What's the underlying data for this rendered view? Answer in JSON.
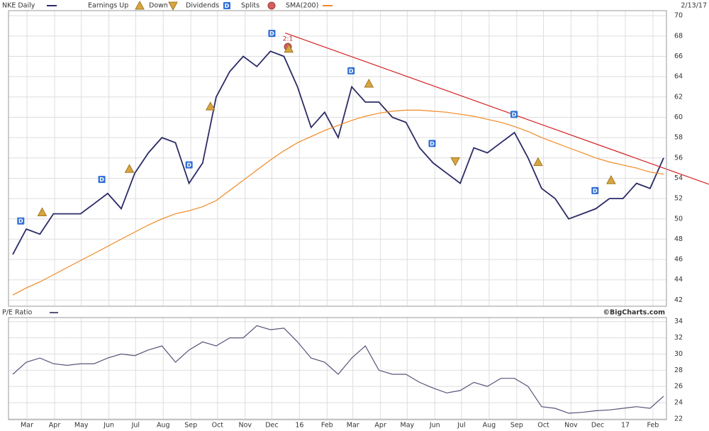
{
  "chart_data": [
    {
      "type": "line",
      "date_label": "2/13/17",
      "xlim": [
        "2015-02-13",
        "2017-02-13"
      ],
      "ylim": [
        41.4,
        70.5
      ],
      "yticks": [
        42,
        44,
        46,
        48,
        50,
        52,
        54,
        56,
        58,
        60,
        62,
        64,
        66,
        68,
        70
      ],
      "grid": true,
      "series": [
        {
          "name": "NKE Daily",
          "color": "#2b2b66",
          "values": [
            46.5,
            49,
            48.5,
            50.5,
            50.5,
            50.5,
            51.5,
            52.5,
            51,
            54.5,
            56.5,
            58,
            57.5,
            53.5,
            55.5,
            62,
            64.5,
            66,
            65,
            66.5,
            66,
            63,
            59,
            60.5,
            58,
            63,
            61.5,
            61.5,
            60,
            59.5,
            57,
            55.5,
            54.5,
            53.5,
            57,
            56.5,
            57.5,
            58.5,
            56,
            53,
            52,
            50,
            50.5,
            51,
            52,
            52,
            53.5,
            53,
            56
          ]
        },
        {
          "name": "SMA(200)",
          "color": "#f08a24",
          "values": [
            42.5,
            43.2,
            43.8,
            44.5,
            45.2,
            45.9,
            46.6,
            47.3,
            48,
            48.7,
            49.4,
            50,
            50.5,
            50.8,
            51.2,
            51.8,
            52.8,
            53.8,
            54.8,
            55.8,
            56.7,
            57.5,
            58.1,
            58.7,
            59.2,
            59.7,
            60.1,
            60.4,
            60.6,
            60.7,
            60.7,
            60.6,
            60.5,
            60.3,
            60.1,
            59.8,
            59.5,
            59.1,
            58.6,
            58,
            57.5,
            57,
            56.5,
            56,
            55.6,
            55.3,
            55,
            54.6,
            54.4
          ]
        }
      ],
      "trendline": {
        "color": "#d42020",
        "points": [
          [
            "2015-12-16",
            68.3
          ],
          [
            "2017-02-13",
            55.0
          ]
        ]
      },
      "event_types": [
        {
          "name": "Earnings Up",
          "shape": "triangle-up",
          "color": "#d9a441"
        },
        {
          "name": "Down",
          "shape": "triangle-down",
          "color": "#d9a441"
        },
        {
          "name": "Dividends",
          "shape": "square",
          "symbol": "D",
          "color": "#2f6fd6"
        },
        {
          "name": "Splits",
          "shape": "circle",
          "color": "#d26060"
        }
      ],
      "events": [
        {
          "kind": "Dividends",
          "x": "2015-02-22"
        },
        {
          "kind": "Earnings Up",
          "x": "2015-03-18"
        },
        {
          "kind": "Dividends",
          "x": "2015-05-24"
        },
        {
          "kind": "Earnings Up",
          "x": "2015-06-24"
        },
        {
          "kind": "Dividends",
          "x": "2015-08-30"
        },
        {
          "kind": "Earnings Up",
          "x": "2015-09-23"
        },
        {
          "kind": "Dividends",
          "x": "2015-12-01"
        },
        {
          "kind": "Splits",
          "x": "2015-12-19",
          "label": "2:1"
        },
        {
          "kind": "Earnings Up",
          "x": "2015-12-20"
        },
        {
          "kind": "Dividends",
          "x": "2016-02-28"
        },
        {
          "kind": "Earnings Up",
          "x": "2016-03-19"
        },
        {
          "kind": "Dividends",
          "x": "2016-05-29"
        },
        {
          "kind": "Down",
          "x": "2016-06-24"
        },
        {
          "kind": "Dividends",
          "x": "2016-08-29"
        },
        {
          "kind": "Earnings Up",
          "x": "2016-09-25"
        },
        {
          "kind": "Dividends",
          "x": "2016-11-28"
        },
        {
          "kind": "Earnings Up",
          "x": "2016-12-16"
        }
      ]
    },
    {
      "type": "line",
      "credit": "©BigCharts.com",
      "xlim": [
        "2015-02-13",
        "2017-02-13"
      ],
      "ylim": [
        21.9,
        34.5
      ],
      "yticks": [
        22,
        24,
        26,
        28,
        30,
        32,
        34
      ],
      "grid": true,
      "xticks": [
        {
          "value": "2015-03",
          "label": "Mar"
        },
        {
          "value": "2015-04",
          "label": "Apr"
        },
        {
          "value": "2015-05",
          "label": "May"
        },
        {
          "value": "2015-06",
          "label": "Jun"
        },
        {
          "value": "2015-07",
          "label": "Jul"
        },
        {
          "value": "2015-08",
          "label": "Aug"
        },
        {
          "value": "2015-09",
          "label": "Sep"
        },
        {
          "value": "2015-10",
          "label": "Oct"
        },
        {
          "value": "2015-11",
          "label": "Nov"
        },
        {
          "value": "2015-12",
          "label": "Dec"
        },
        {
          "value": "2016-01",
          "label": "16"
        },
        {
          "value": "2016-02",
          "label": "Feb"
        },
        {
          "value": "2016-03",
          "label": "Mar"
        },
        {
          "value": "2016-04",
          "label": "Apr"
        },
        {
          "value": "2016-05",
          "label": "May"
        },
        {
          "value": "2016-06",
          "label": "Jun"
        },
        {
          "value": "2016-07",
          "label": "Jul"
        },
        {
          "value": "2016-08",
          "label": "Aug"
        },
        {
          "value": "2016-09",
          "label": "Sep"
        },
        {
          "value": "2016-10",
          "label": "Oct"
        },
        {
          "value": "2016-11",
          "label": "Nov"
        },
        {
          "value": "2016-12",
          "label": "Dec"
        },
        {
          "value": "2017-01",
          "label": "17"
        },
        {
          "value": "2017-02",
          "label": "Feb"
        }
      ],
      "series": [
        {
          "name": "P/E Ratio",
          "color": "#55557a",
          "values": [
            27.5,
            29,
            29.5,
            28.8,
            28.6,
            28.8,
            28.8,
            29.5,
            30,
            29.8,
            30.5,
            31,
            29,
            30.5,
            31.5,
            31,
            32,
            32,
            33.5,
            33,
            33.2,
            31.5,
            29.5,
            29,
            27.5,
            29.5,
            31,
            28,
            27.5,
            27.5,
            26.5,
            25.8,
            25.2,
            25.5,
            26.5,
            26,
            27,
            27,
            26,
            23.5,
            23.3,
            22.7,
            22.8,
            23,
            23.1,
            23.3,
            23.5,
            23.3,
            24.8
          ]
        }
      ]
    }
  ]
}
